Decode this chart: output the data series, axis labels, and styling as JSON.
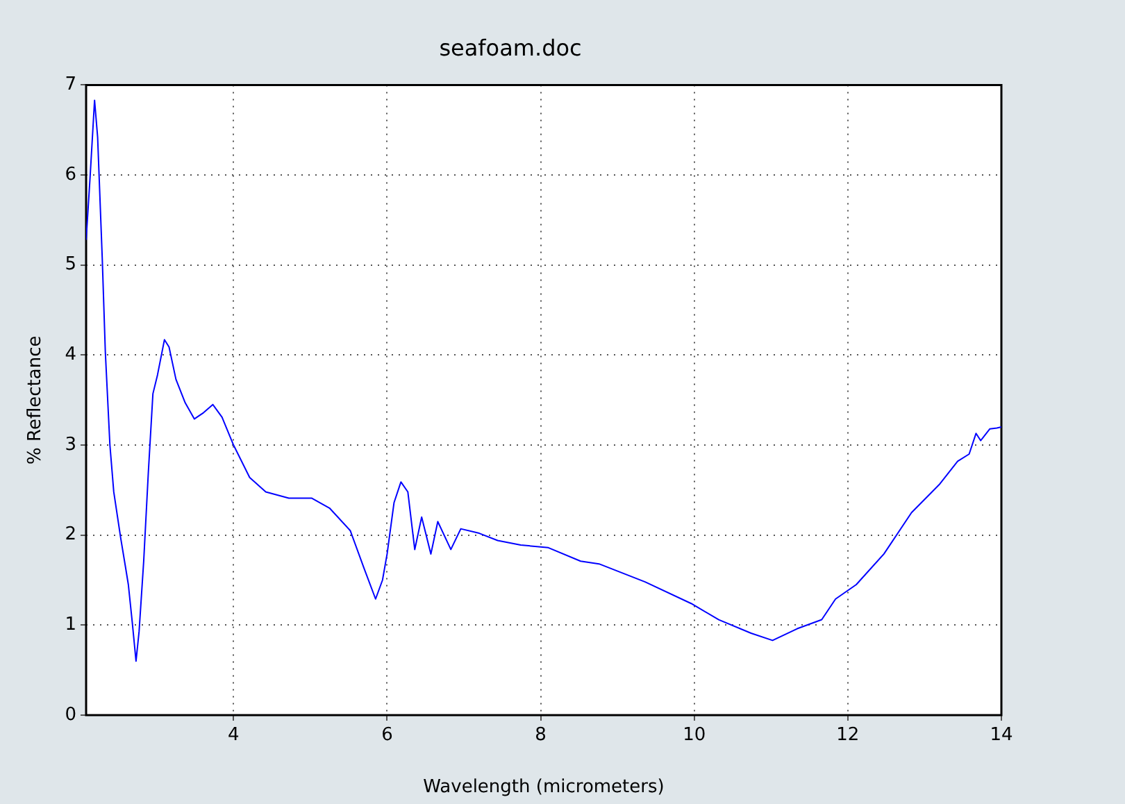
{
  "chart_data": {
    "type": "line",
    "title": "seafoam.doc",
    "xlabel": "Wavelength (micrometers)",
    "ylabel": "% Reflectance",
    "xlim": [
      2.08,
      14
    ],
    "xticks": [
      4,
      6,
      8,
      10,
      12,
      14
    ],
    "ylim": [
      0,
      7
    ],
    "yticks": [
      0,
      1,
      2,
      3,
      4,
      5,
      6,
      7
    ],
    "grid": true,
    "marker": "none",
    "line_style": "solid",
    "series": [
      {
        "color": "#0000ff",
        "x": [
          2.08,
          2.13,
          2.19,
          2.23,
          2.29,
          2.33,
          2.39,
          2.44,
          2.53,
          2.59,
          2.63,
          2.68,
          2.73,
          2.77,
          2.83,
          2.89,
          2.95,
          3.01,
          3.1,
          3.16,
          3.25,
          3.37,
          3.49,
          3.61,
          3.73,
          3.85,
          4.0,
          4.21,
          4.42,
          4.72,
          5.02,
          5.25,
          5.52,
          5.7,
          5.85,
          5.94,
          6.0,
          6.09,
          6.18,
          6.27,
          6.36,
          6.45,
          6.57,
          6.66,
          6.83,
          6.96,
          7.2,
          7.44,
          7.74,
          8.1,
          8.52,
          8.76,
          9.36,
          9.96,
          10.32,
          10.74,
          11.02,
          11.34,
          11.66,
          11.84,
          12.11,
          12.47,
          12.83,
          13.19,
          13.43,
          13.58,
          13.67,
          13.73,
          13.85,
          13.94,
          14.0
        ],
        "values": [
          5.28,
          5.95,
          6.83,
          6.42,
          5.08,
          4.04,
          3.0,
          2.48,
          1.97,
          1.66,
          1.45,
          1.04,
          0.6,
          0.93,
          1.71,
          2.69,
          3.57,
          3.78,
          4.17,
          4.09,
          3.73,
          3.47,
          3.29,
          3.36,
          3.45,
          3.31,
          3.0,
          2.64,
          2.48,
          2.41,
          2.41,
          2.3,
          2.05,
          1.63,
          1.29,
          1.5,
          1.79,
          2.36,
          2.59,
          2.48,
          1.84,
          2.2,
          1.79,
          2.15,
          1.84,
          2.07,
          2.02,
          1.94,
          1.89,
          1.86,
          1.71,
          1.68,
          1.48,
          1.24,
          1.06,
          0.91,
          0.83,
          0.96,
          1.06,
          1.29,
          1.45,
          1.79,
          2.25,
          2.56,
          2.82,
          2.9,
          3.13,
          3.05,
          3.18,
          3.19,
          3.2
        ]
      }
    ]
  }
}
